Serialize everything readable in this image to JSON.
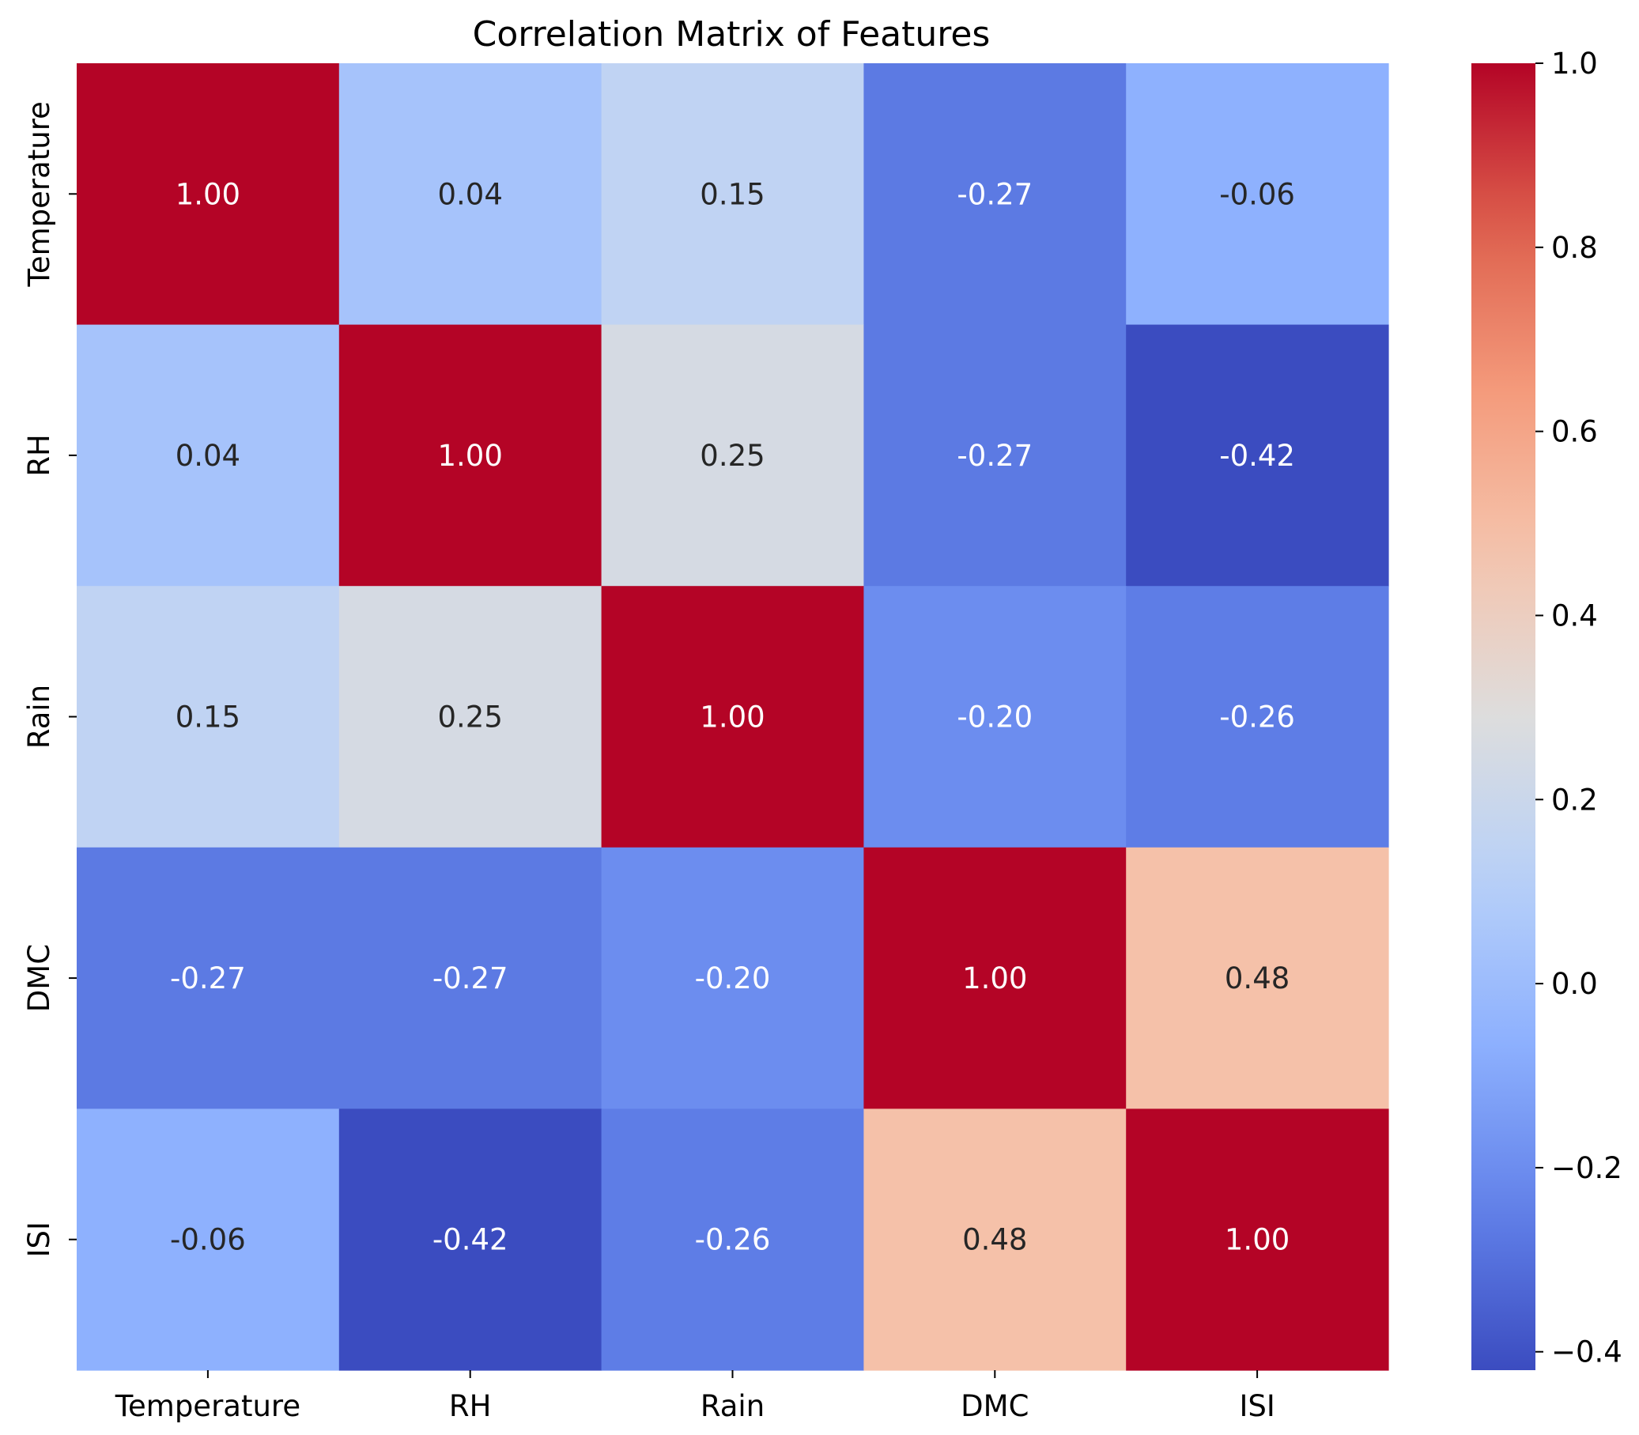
{
  "chart_data": {
    "type": "heatmap",
    "title": "Correlation Matrix of Features",
    "xlabel": "",
    "ylabel": "",
    "labels": [
      "Temperature",
      "RH",
      "Rain",
      "DMC",
      "ISI"
    ],
    "matrix": [
      [
        1.0,
        0.04,
        0.15,
        -0.27,
        -0.06
      ],
      [
        0.04,
        1.0,
        0.25,
        -0.27,
        -0.42
      ],
      [
        0.15,
        0.25,
        1.0,
        -0.2,
        -0.26
      ],
      [
        -0.27,
        -0.27,
        -0.2,
        1.0,
        0.48
      ],
      [
        -0.06,
        -0.42,
        -0.26,
        0.48,
        1.0
      ]
    ],
    "value_format": "0.00",
    "colormap": "coolwarm",
    "vmin": -0.42,
    "vmax": 1.0,
    "colorbar_ticks": [
      -0.4,
      -0.2,
      0.0,
      0.2,
      0.4,
      0.6,
      0.8,
      1.0
    ],
    "colorbar_tick_labels": [
      "−0.4",
      "−0.2",
      "0.0",
      "0.2",
      "0.4",
      "0.6",
      "0.8",
      "1.0"
    ]
  }
}
